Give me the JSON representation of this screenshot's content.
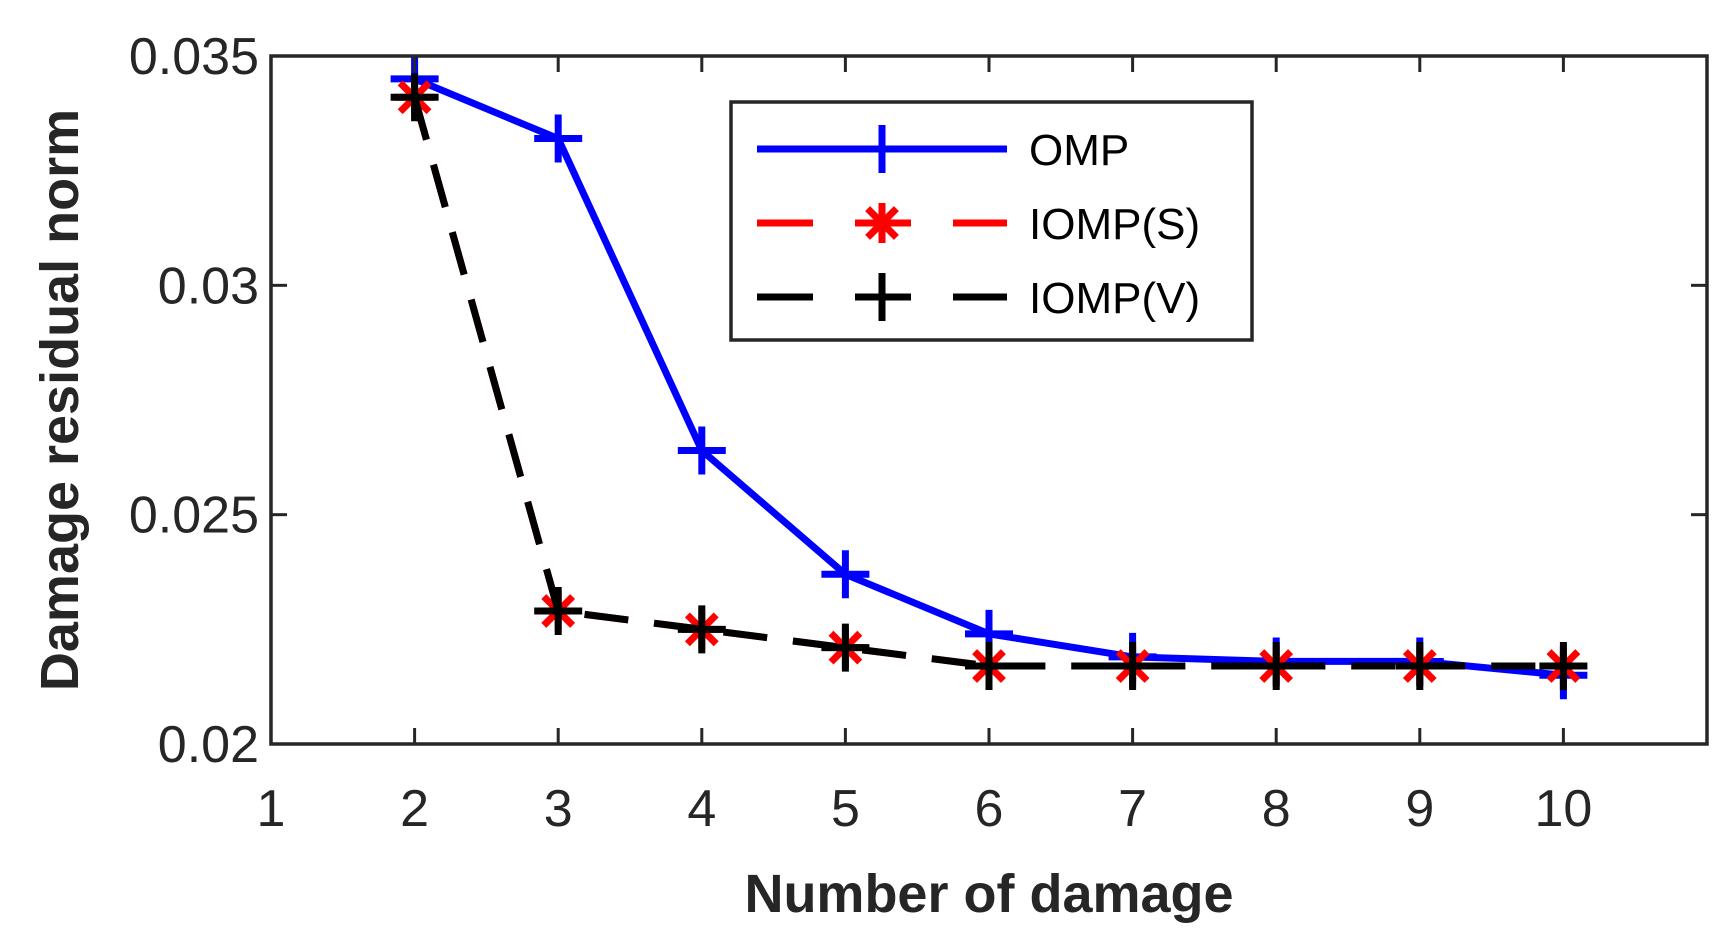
{
  "chart_data": {
    "type": "line",
    "title": "",
    "xlabel": "Number of damage",
    "ylabel": "Damage residual norm",
    "xlim": [
      1,
      11
    ],
    "ylim": [
      0.02,
      0.035
    ],
    "xticks": [
      1,
      2,
      3,
      4,
      5,
      6,
      7,
      8,
      9,
      10
    ],
    "yticks": [
      0.02,
      0.025,
      0.03,
      0.035
    ],
    "xtick_labels": [
      "1",
      "2",
      "3",
      "4",
      "5",
      "6",
      "7",
      "8",
      "9",
      "10"
    ],
    "ytick_labels": [
      "0.02",
      "0.025",
      "0.03",
      "0.035"
    ],
    "legend_position": "top-center",
    "x": [
      2,
      3,
      4,
      5,
      6,
      7,
      8,
      9,
      10
    ],
    "series": [
      {
        "name": "OMP",
        "color": "#0000ff",
        "line_style": "solid",
        "marker": "plus",
        "values": [
          0.0345,
          0.0332,
          0.0264,
          0.0237,
          0.0224,
          0.0219,
          0.0218,
          0.0218,
          0.0215
        ]
      },
      {
        "name": "IOMP(S)",
        "color": "#ff0000",
        "line_style": "dashed",
        "marker": "asterisk",
        "values": [
          0.0341,
          0.0229,
          0.0225,
          0.0221,
          0.0217,
          0.0217,
          0.0217,
          0.0217,
          0.0217
        ]
      },
      {
        "name": "IOMP(V)",
        "color": "#000000",
        "line_style": "dashed",
        "marker": "plus",
        "values": [
          0.0341,
          0.0229,
          0.0225,
          0.0221,
          0.0217,
          0.0217,
          0.0217,
          0.0217,
          0.0217
        ]
      }
    ]
  }
}
